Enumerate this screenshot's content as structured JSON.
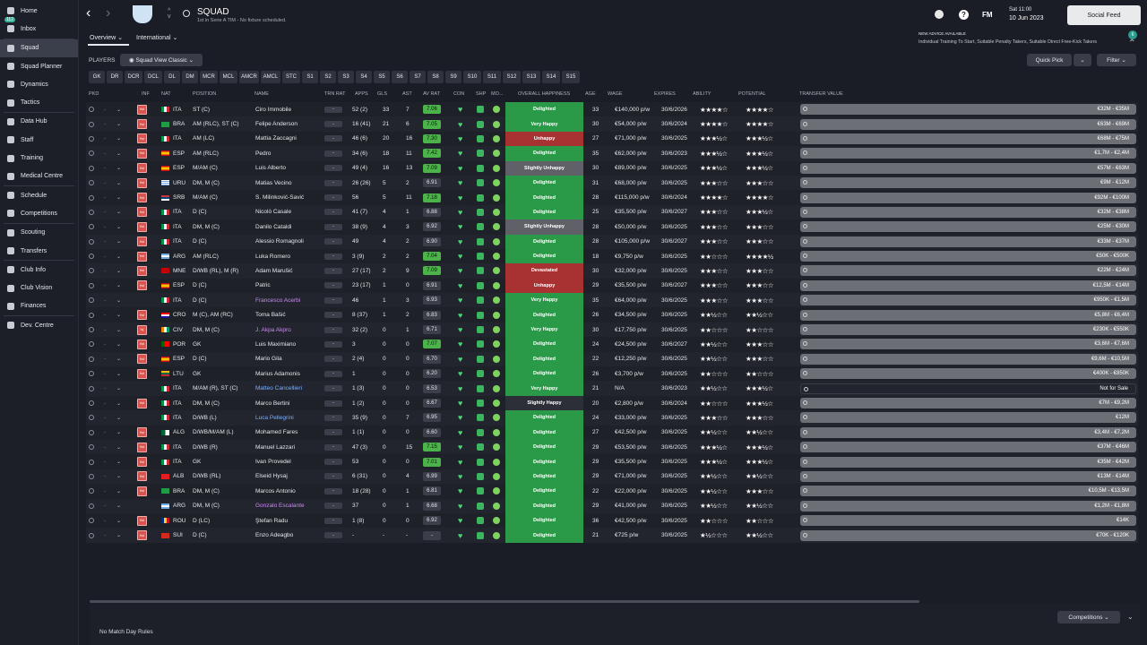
{
  "sidebar": {
    "items": [
      {
        "label": "Home",
        "icon": "home-icon"
      },
      {
        "label": "Inbox",
        "icon": "inbox-icon",
        "badge": "112"
      },
      {
        "label": "Squad",
        "icon": "squad-icon",
        "active": true
      },
      {
        "label": "Squad Planner",
        "icon": "planner-icon"
      },
      {
        "label": "Dynamics",
        "icon": "dynamics-icon"
      },
      {
        "label": "Tactics",
        "icon": "tactics-icon"
      },
      {
        "label": "Data Hub",
        "icon": "data-hub-icon"
      },
      {
        "label": "Staff",
        "icon": "staff-icon"
      },
      {
        "label": "Training",
        "icon": "training-icon"
      },
      {
        "label": "Medical Centre",
        "icon": "medical-icon"
      },
      {
        "label": "Schedule",
        "icon": "schedule-icon"
      },
      {
        "label": "Competitions",
        "icon": "trophy-icon"
      },
      {
        "label": "Scouting",
        "icon": "scouting-icon"
      },
      {
        "label": "Transfers",
        "icon": "transfers-icon"
      },
      {
        "label": "Club Info",
        "icon": "club-info-icon"
      },
      {
        "label": "Club Vision",
        "icon": "vision-icon"
      },
      {
        "label": "Finances",
        "icon": "finances-icon"
      },
      {
        "label": "Dev. Centre",
        "icon": "dev-centre-icon"
      }
    ]
  },
  "header": {
    "title": "SQUAD",
    "subtitle": "1st in Serie A TIM - No fixture scheduled.",
    "date_day": "Sat 11:00",
    "date": "10 Jun 2023",
    "social_feed": "Social Feed",
    "advice_title": "NEW ADVICE AVAILABLE",
    "advice_text": "Individual Training To Start, Suitable Penalty Takers, Suitable Direct Free-Kick Takers",
    "advice_count": "6",
    "fm": "FM"
  },
  "tabs": {
    "overview": "Overview",
    "international": "International"
  },
  "toolbar": {
    "players_label": "PLAYERS",
    "view": "Squad View Classic",
    "quick_pick": "Quick Pick",
    "filter": "Filter"
  },
  "position_filters": [
    "GK",
    "DR",
    "DCR",
    "DCL",
    "DL",
    "DM",
    "MCR",
    "MCL",
    "AMCR",
    "AMCL",
    "STC",
    "S1",
    "S2",
    "S3",
    "S4",
    "S5",
    "S6",
    "S7",
    "S8",
    "S9",
    "S10",
    "S11",
    "S12",
    "S13",
    "S14",
    "S15"
  ],
  "columns": {
    "pkd": "PKD",
    "inf": "INF",
    "nat": "NAT",
    "position": "POSITION",
    "name": "NAME",
    "trn_rat": "TRN RAT",
    "apps": "APPS",
    "gls": "GLS",
    "ast": "AST",
    "av_rat": "AV RAT",
    "con": "CON",
    "shp": "SHP",
    "mo": "MO...",
    "happiness": "OVERALL HAPPINESS",
    "age": "AGE",
    "wage": "WAGE",
    "expires": "EXPIRES",
    "ability": "ABILITY",
    "potential": "POTENTIAL",
    "transfer_value": "TRANSFER VALUE"
  },
  "colors": {
    "delighted": "#2b9a48",
    "very_happy": "#2b9a48",
    "unhappy": "#a83232",
    "devastated": "#a83232",
    "slightly_unhappy": "#5f6068",
    "slightly_happy": "#2d2f38",
    "avrat_green": "#4bb34a"
  },
  "players": [
    {
      "inf": "Hol",
      "nat": "ITA",
      "flag": "ita",
      "pos": "ST (C)",
      "name": "Ciro Immobile",
      "trn": "-",
      "apps": "52 (2)",
      "gls": "33",
      "ast": "7",
      "avr": "7.06",
      "hap": "Delighted",
      "hapc": "delighted",
      "age": "33",
      "wage": "€140,000 p/w",
      "exp": "30/6/2026",
      "ab": "★★★★☆",
      "pot": "★★★★☆",
      "tv": "€32M - €35M"
    },
    {
      "inf": "Hol",
      "nat": "BRA",
      "flag": "bra",
      "pos": "AM (RLC), ST (C)",
      "name": "Felipe Anderson",
      "trn": "-",
      "apps": "16 (41)",
      "gls": "21",
      "ast": "6",
      "avr": "7.05",
      "hap": "Very Happy",
      "hapc": "very_happy",
      "age": "30",
      "wage": "€54,000 p/w",
      "exp": "30/6/2024",
      "ab": "★★★★☆",
      "pot": "★★★★☆",
      "tv": "€63M - €69M"
    },
    {
      "inf": "Hol",
      "nat": "ITA",
      "flag": "ita",
      "pos": "AM (LC)",
      "name": "Mattia Zaccagni",
      "trn": "-",
      "apps": "46 (6)",
      "gls": "20",
      "ast": "16",
      "avr": "7.30",
      "hap": "Unhappy",
      "hapc": "unhappy",
      "age": "27",
      "wage": "€71,000 p/w",
      "exp": "30/6/2025",
      "ab": "★★★½☆",
      "pot": "★★★½☆",
      "tv": "€68M - €75M"
    },
    {
      "inf": "Hol",
      "nat": "ESP",
      "flag": "esp",
      "pos": "AM (RLC)",
      "name": "Pedro",
      "trn": "-",
      "apps": "34 (6)",
      "gls": "18",
      "ast": "11",
      "avr": "7.42",
      "hap": "Delighted",
      "hapc": "delighted",
      "age": "35",
      "wage": "€62,000 p/w",
      "exp": "30/6/2023",
      "ab": "★★★½☆",
      "pot": "★★★½☆",
      "tv": "€1,7M - €2,4M"
    },
    {
      "inf": "Hol",
      "nat": "ESP",
      "flag": "esp",
      "pos": "M/AM (C)",
      "name": "Luis Alberto",
      "trn": "-",
      "apps": "49 (4)",
      "gls": "16",
      "ast": "13",
      "avr": "7.09",
      "hap": "Slightly Unhappy",
      "hapc": "slightly_unhappy",
      "age": "30",
      "wage": "€89,000 p/w",
      "exp": "30/6/2025",
      "ab": "★★★½☆",
      "pot": "★★★½☆",
      "tv": "€57M - €63M"
    },
    {
      "inf": "Hol",
      "nat": "URU",
      "flag": "uru",
      "pos": "DM, M (C)",
      "name": "Matias Vecino",
      "trn": "-",
      "apps": "26 (26)",
      "gls": "5",
      "ast": "2",
      "avr": "6.91",
      "hap": "Delighted",
      "hapc": "delighted",
      "age": "31",
      "wage": "€68,000 p/w",
      "exp": "30/6/2025",
      "ab": "★★★☆☆",
      "pot": "★★★☆☆",
      "tv": "€9M - €12M"
    },
    {
      "inf": "Hol",
      "nat": "SRB",
      "flag": "srb",
      "pos": "M/AM (C)",
      "name": "S. Milinković-Savić",
      "trn": "-",
      "apps": "56",
      "gls": "5",
      "ast": "11",
      "avr": "7.18",
      "hap": "Delighted",
      "hapc": "delighted",
      "age": "28",
      "wage": "€115,000 p/w",
      "exp": "30/6/2024",
      "ab": "★★★★☆",
      "pot": "★★★★☆",
      "tv": "€92M - €100M"
    },
    {
      "inf": "Hol",
      "nat": "ITA",
      "flag": "ita",
      "pos": "D (C)",
      "name": "Nicolò Casale",
      "trn": "-",
      "apps": "41 (7)",
      "gls": "4",
      "ast": "1",
      "avr": "6.88",
      "hap": "Delighted",
      "hapc": "delighted",
      "age": "25",
      "wage": "€35,500 p/w",
      "exp": "30/6/2027",
      "ab": "★★★☆☆",
      "pot": "★★★½☆",
      "tv": "€32M - €38M"
    },
    {
      "inf": "Hol",
      "nat": "ITA",
      "flag": "ita",
      "pos": "DM, M (C)",
      "name": "Danilo Cataldi",
      "trn": "-",
      "apps": "38 (9)",
      "gls": "4",
      "ast": "3",
      "avr": "6.92",
      "hap": "Slightly Unhappy",
      "hapc": "slightly_unhappy",
      "age": "28",
      "wage": "€50,000 p/w",
      "exp": "30/6/2025",
      "ab": "★★★☆☆",
      "pot": "★★★☆☆",
      "tv": "€25M - €30M"
    },
    {
      "inf": "Hol",
      "nat": "ITA",
      "flag": "ita",
      "pos": "D (C)",
      "name": "Alessio Romagnoli",
      "trn": "-",
      "apps": "49",
      "gls": "4",
      "ast": "2",
      "avr": "6.90",
      "hap": "Delighted",
      "hapc": "delighted",
      "age": "28",
      "wage": "€105,000 p/w",
      "exp": "30/6/2027",
      "ab": "★★★☆☆",
      "pot": "★★★☆☆",
      "tv": "€33M - €37M"
    },
    {
      "inf": "Hol",
      "nat": "ARG",
      "flag": "arg",
      "pos": "AM (RLC)",
      "name": "Luka Romero",
      "trn": "-",
      "apps": "3 (9)",
      "gls": "2",
      "ast": "2",
      "avr": "7.04",
      "hap": "Delighted",
      "hapc": "delighted",
      "age": "18",
      "wage": "€9,750 p/w",
      "exp": "30/6/2025",
      "ab": "★★☆☆☆",
      "pot": "★★★★½",
      "tv": "€50K - €500K"
    },
    {
      "inf": "Hol",
      "nat": "MNE",
      "flag": "mne",
      "pos": "D/WB (RL), M (R)",
      "name": "Adam Marušić",
      "trn": "-",
      "apps": "27 (17)",
      "gls": "2",
      "ast": "9",
      "avr": "7.09",
      "hap": "Devastated",
      "hapc": "devastated",
      "age": "30",
      "wage": "€32,000 p/w",
      "exp": "30/6/2025",
      "ab": "★★★☆☆",
      "pot": "★★★☆☆",
      "tv": "€22M - €24M"
    },
    {
      "inf": "Hol",
      "nat": "ESP",
      "flag": "esp",
      "pos": "D (C)",
      "name": "Patric",
      "trn": "-",
      "apps": "23 (17)",
      "gls": "1",
      "ast": "0",
      "avr": "6.91",
      "hap": "Unhappy",
      "hapc": "unhappy",
      "age": "29",
      "wage": "€35,500 p/w",
      "exp": "30/6/2027",
      "ab": "★★★☆☆",
      "pot": "★★★☆☆",
      "tv": "€12,5M - €14M"
    },
    {
      "inf": "",
      "nat": "ITA",
      "flag": "ita",
      "pos": "D (C)",
      "name": "Francesco Acerbi",
      "link": "purple",
      "trn": "-",
      "apps": "46",
      "gls": "1",
      "ast": "3",
      "avr": "6.93",
      "hap": "Very Happy",
      "hapc": "very_happy",
      "age": "35",
      "wage": "€64,000 p/w",
      "exp": "30/6/2025",
      "ab": "★★★☆☆",
      "pot": "★★★☆☆",
      "tv": "€950K - €1,5M"
    },
    {
      "inf": "Hol",
      "nat": "CRO",
      "flag": "cro",
      "pos": "M (C), AM (RC)",
      "name": "Toma Bašić",
      "trn": "-",
      "apps": "8 (37)",
      "gls": "1",
      "ast": "2",
      "avr": "6.83",
      "hap": "Delighted",
      "hapc": "delighted",
      "age": "26",
      "wage": "€34,500 p/w",
      "exp": "30/6/2025",
      "ab": "★★½☆☆",
      "pot": "★★½☆☆",
      "tv": "€5,8M - €6,4M"
    },
    {
      "inf": "Inj",
      "nat": "CIV",
      "flag": "civ",
      "pos": "DM, M (C)",
      "name": "J. Akpa Akpro",
      "link": "purple",
      "trn": "-",
      "apps": "32 (2)",
      "gls": "0",
      "ast": "1",
      "avr": "6.71",
      "hap": "Very Happy",
      "hapc": "very_happy",
      "age": "30",
      "wage": "€17,750 p/w",
      "exp": "30/6/2025",
      "ab": "★★☆☆☆",
      "pot": "★★☆☆☆",
      "tv": "€230K - €550K"
    },
    {
      "inf": "Hol",
      "nat": "POR",
      "flag": "por",
      "pos": "GK",
      "name": "Luis Maximiano",
      "trn": "-",
      "apps": "3",
      "gls": "0",
      "ast": "0",
      "avr": "7.07",
      "hap": "Delighted",
      "hapc": "delighted",
      "age": "24",
      "wage": "€24,500 p/w",
      "exp": "30/6/2027",
      "ab": "★★½☆☆",
      "pot": "★★★☆☆",
      "tv": "€3,6M - €7,6M"
    },
    {
      "inf": "Hol",
      "nat": "ESP",
      "flag": "esp",
      "pos": "D (C)",
      "name": "Mario Gila",
      "trn": "-",
      "apps": "2 (4)",
      "gls": "0",
      "ast": "0",
      "avr": "6.70",
      "hap": "Delighted",
      "hapc": "delighted",
      "age": "22",
      "wage": "€12,250 p/w",
      "exp": "30/6/2025",
      "ab": "★★½☆☆",
      "pot": "★★★☆☆",
      "tv": "€9,6M - €10,5M"
    },
    {
      "inf": "Hol",
      "nat": "LTU",
      "flag": "ltu",
      "pos": "GK",
      "name": "Marius Adamonis",
      "trn": "-",
      "apps": "1",
      "gls": "0",
      "ast": "0",
      "avr": "6.20",
      "hap": "Delighted",
      "hapc": "delighted",
      "age": "26",
      "wage": "€3,700 p/w",
      "exp": "30/6/2025",
      "ab": "★★☆☆☆",
      "pot": "★★☆☆☆",
      "tv": "€400K - €850K"
    },
    {
      "inf": "",
      "nat": "ITA",
      "flag": "ita",
      "pos": "M/AM (R), ST (C)",
      "name": "Matteo Cancellieri",
      "link": "blue",
      "trn": "-",
      "apps": "1 (3)",
      "gls": "0",
      "ast": "0",
      "avr": "6.53",
      "hap": "Very Happy",
      "hapc": "very_happy",
      "age": "21",
      "wage": "N/A",
      "exp": "30/6/2023",
      "ab": "★★½☆☆",
      "pot": "★★★½☆",
      "tv": "Not for Sale",
      "nfs": true
    },
    {
      "inf": "Hol",
      "nat": "ITA",
      "flag": "ita",
      "pos": "DM, M (C)",
      "name": "Marco Bertini",
      "trn": "-",
      "apps": "1 (2)",
      "gls": "0",
      "ast": "0",
      "avr": "6.67",
      "hap": "Slightly Happy",
      "hapc": "slightly_happy",
      "age": "20",
      "wage": "€2,800 p/w",
      "exp": "30/6/2024",
      "ab": "★★☆☆☆",
      "pot": "★★★½☆",
      "tv": "€7M - €9,2M"
    },
    {
      "inf": "",
      "nat": "ITA",
      "flag": "ita",
      "pos": "D/WB (L)",
      "name": "Luca Pellegrini",
      "link": "blue",
      "trn": "-",
      "apps": "35 (9)",
      "gls": "0",
      "ast": "7",
      "avr": "6.95",
      "hap": "Delighted",
      "hapc": "delighted",
      "age": "24",
      "wage": "€33,000 p/w",
      "exp": "30/6/2025",
      "ab": "★★★☆☆",
      "pot": "★★★☆☆",
      "tv": "€12M"
    },
    {
      "inf": "Hol",
      "nat": "ALG",
      "flag": "alg",
      "pos": "D/WB/M/AM (L)",
      "name": "Mohamed Fares",
      "trn": "-",
      "apps": "1 (1)",
      "gls": "0",
      "ast": "0",
      "avr": "6.60",
      "hap": "Delighted",
      "hapc": "delighted",
      "age": "27",
      "wage": "€42,500 p/w",
      "exp": "30/6/2025",
      "ab": "★★½☆☆",
      "pot": "★★½☆☆",
      "tv": "€3,4M - €7,2M"
    },
    {
      "inf": "Hol",
      "nat": "ITA",
      "flag": "ita",
      "pos": "D/WB (R)",
      "name": "Manuel Lazzari",
      "trn": "-",
      "apps": "47 (3)",
      "gls": "0",
      "ast": "15",
      "avr": "7.15",
      "hap": "Delighted",
      "hapc": "delighted",
      "age": "29",
      "wage": "€53,500 p/w",
      "exp": "30/6/2025",
      "ab": "★★★½☆",
      "pot": "★★★½☆",
      "tv": "€37M - €46M"
    },
    {
      "inf": "Hol",
      "nat": "ITA",
      "flag": "ita",
      "pos": "GK",
      "name": "Ivan Provedel",
      "trn": "-",
      "apps": "53",
      "gls": "0",
      "ast": "0",
      "avr": "7.01",
      "hap": "Delighted",
      "hapc": "delighted",
      "age": "29",
      "wage": "€35,500 p/w",
      "exp": "30/6/2025",
      "ab": "★★★½☆",
      "pot": "★★★½☆",
      "tv": "€35M - €42M"
    },
    {
      "inf": "Hol",
      "nat": "ALB",
      "flag": "alb",
      "pos": "D/WB (RL)",
      "name": "Elseid Hysaj",
      "trn": "-",
      "apps": "6 (31)",
      "gls": "0",
      "ast": "4",
      "avr": "6.99",
      "hap": "Delighted",
      "hapc": "delighted",
      "age": "29",
      "wage": "€71,000 p/w",
      "exp": "30/6/2025",
      "ab": "★★½☆☆",
      "pot": "★★½☆☆",
      "tv": "€13M - €14M"
    },
    {
      "inf": "Hol",
      "nat": "BRA",
      "flag": "bra",
      "pos": "DM, M (C)",
      "name": "Marcos Antonio",
      "trn": "-",
      "apps": "18 (28)",
      "gls": "0",
      "ast": "1",
      "avr": "6.81",
      "hap": "Delighted",
      "hapc": "delighted",
      "age": "22",
      "wage": "€22,000 p/w",
      "exp": "30/6/2025",
      "ab": "★★½☆☆",
      "pot": "★★★☆☆",
      "tv": "€10,5M - €13,5M"
    },
    {
      "inf": "",
      "nat": "ARG",
      "flag": "arg",
      "pos": "DM, M (C)",
      "name": "Gonzalo Escalante",
      "link": "purple",
      "trn": "-",
      "apps": "37",
      "gls": "0",
      "ast": "1",
      "avr": "6.68",
      "hap": "Delighted",
      "hapc": "delighted",
      "age": "29",
      "wage": "€41,000 p/w",
      "exp": "30/6/2025",
      "ab": "★★½☆☆",
      "pot": "★★½☆☆",
      "tv": "€1,2M - €1,8M"
    },
    {
      "inf": "Hol",
      "nat": "ROU",
      "flag": "rou",
      "pos": "D (LC)",
      "name": "Ştefan Radu",
      "trn": "-",
      "apps": "1 (8)",
      "gls": "0",
      "ast": "0",
      "avr": "6.92",
      "hap": "Delighted",
      "hapc": "delighted",
      "age": "36",
      "wage": "€42,500 p/w",
      "exp": "30/6/2025",
      "ab": "★★☆☆☆",
      "pot": "★★☆☆☆",
      "tv": "€14K"
    },
    {
      "inf": "Hol",
      "nat": "SUI",
      "flag": "sui",
      "pos": "D (C)",
      "name": "Enzo Adeagbo",
      "trn": "-",
      "apps": "-",
      "gls": "-",
      "ast": "-",
      "avr": "-",
      "hap": "Delighted",
      "hapc": "delighted",
      "age": "21",
      "wage": "€725 p/w",
      "exp": "30/6/2025",
      "ab": "★½☆☆☆",
      "pot": "★★½☆☆",
      "tv": "€70K - €120K"
    }
  ],
  "footer": {
    "match_day_rules": "No Match Day Rules",
    "competitions": "Competitions"
  }
}
